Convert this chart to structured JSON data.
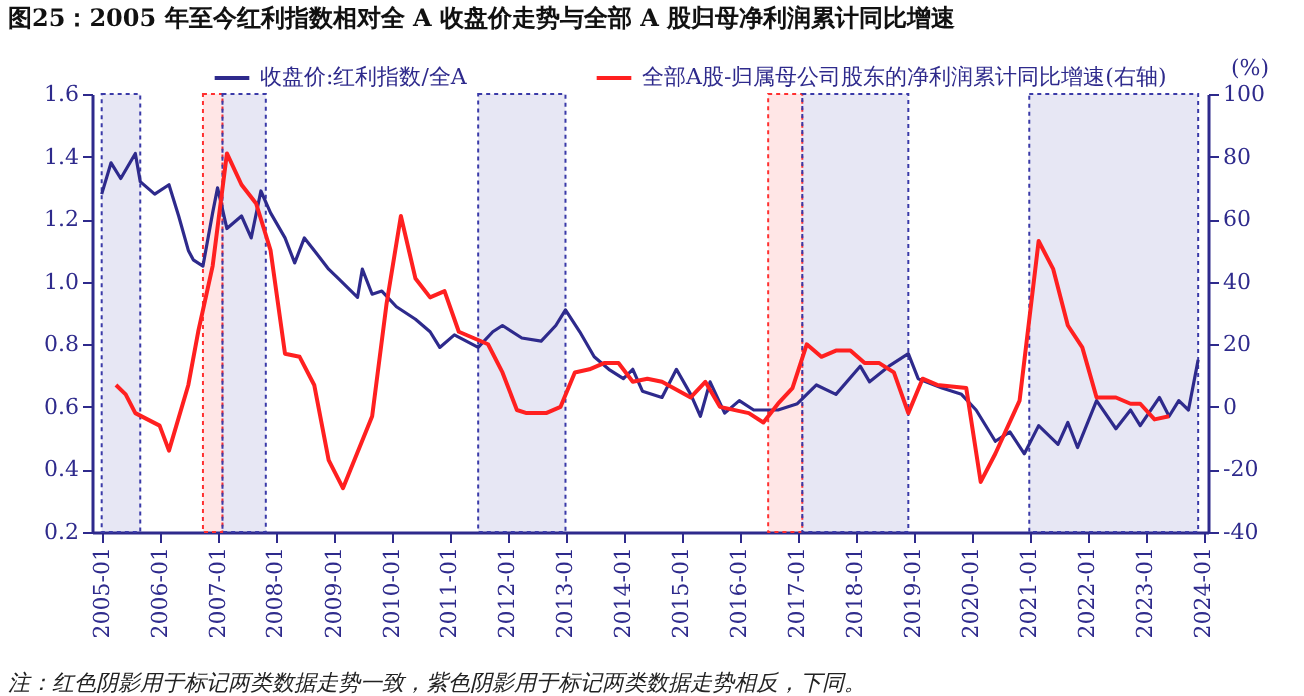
{
  "chart_data": {
    "type": "line",
    "title": "图25：2005 年至今红利指数相对全 A 收盘价走势与全部 A 股归母净利润累计同比增速",
    "annotations": [
      "注：红色阴影用于标记两类数据走势一致，紫色阴影用于标记两类数据走势相反，下同。"
    ],
    "y2label": "(%)",
    "xlim": [
      "2004-11",
      "2024-02"
    ],
    "xticks": [
      "2005-01",
      "2006-01",
      "2007-01",
      "2008-01",
      "2009-01",
      "2010-01",
      "2011-01",
      "2012-01",
      "2013-01",
      "2014-01",
      "2015-01",
      "2016-01",
      "2017-01",
      "2018-01",
      "2019-01",
      "2020-01",
      "2021-01",
      "2022-01",
      "2023-01",
      "2024-01"
    ],
    "ylim": [
      0.2,
      1.6
    ],
    "yticks": [
      0.2,
      0.4,
      0.6,
      0.8,
      {
        "value": 1,
        "label": "1.0"
      },
      1.2,
      1.4,
      1.6
    ],
    "y2lim": [
      -40,
      100
    ],
    "y2ticks": [
      {
        "value": -40,
        "label": "-40"
      },
      {
        "value": -20,
        "label": "-20"
      },
      0,
      20,
      40,
      60,
      80,
      100
    ],
    "grid": false,
    "legend": "top",
    "marker": "none",
    "line_style": "solid",
    "bands": [
      {
        "axis": "x",
        "from": "2005-01",
        "to": "2005-09",
        "color": "#3a3aa8"
      },
      {
        "axis": "x",
        "from": "2006-10",
        "to": "2007-02",
        "color": "#ff3030"
      },
      {
        "axis": "x",
        "from": "2007-02",
        "to": "2007-11",
        "color": "#3a3aa8"
      },
      {
        "axis": "x",
        "from": "2011-07",
        "to": "2013-01",
        "color": "#3a3aa8"
      },
      {
        "axis": "x",
        "from": "2016-07",
        "to": "2017-02",
        "color": "#ff3030"
      },
      {
        "axis": "x",
        "from": "2017-02",
        "to": "2018-12",
        "color": "#3a3aa8"
      },
      {
        "axis": "x",
        "from": "2021-01",
        "to": "2023-12",
        "color": "#3a3aa8"
      }
    ],
    "series": [
      {
        "name": "收盘价:红利指数/全A",
        "color": "#2e2a8c",
        "x": [
          "2005-01",
          "2005-03",
          "2005-05",
          "2005-08",
          "2005-09",
          "2005-12",
          "2006-03",
          "2006-05",
          "2006-07",
          "2006-08",
          "2006-10",
          "2006-12",
          "2007-01",
          "2007-03",
          "2007-06",
          "2007-08",
          "2007-10",
          "2007-12",
          "2008-03",
          "2008-05",
          "2008-07",
          "2008-09",
          "2008-12",
          "2009-02",
          "2009-06",
          "2009-07",
          "2009-09",
          "2009-11",
          "2010-02",
          "2010-06",
          "2010-09",
          "2010-11",
          "2011-02",
          "2011-07",
          "2011-10",
          "2011-12",
          "2012-04",
          "2012-08",
          "2012-11",
          "2013-01",
          "2013-04",
          "2013-07",
          "2013-10",
          "2014-01",
          "2014-03",
          "2014-05",
          "2014-09",
          "2014-12",
          "2015-03",
          "2015-05",
          "2015-07",
          "2015-10",
          "2016-01",
          "2016-04",
          "2016-06",
          "2016-09",
          "2017-01",
          "2017-05",
          "2017-09",
          "2018-02",
          "2018-04",
          "2018-08",
          "2018-12",
          "2019-02",
          "2019-07",
          "2019-11",
          "2020-02",
          "2020-06",
          "2020-09",
          "2020-12",
          "2021-03",
          "2021-07",
          "2021-09",
          "2021-11",
          "2022-03",
          "2022-07",
          "2022-10",
          "2022-12",
          "2023-04",
          "2023-06",
          "2023-08",
          "2023-10",
          "2023-12"
        ],
        "values": [
          1.28,
          1.38,
          1.33,
          1.41,
          1.32,
          1.28,
          1.31,
          1.21,
          1.1,
          1.07,
          1.05,
          1.22,
          1.3,
          1.17,
          1.21,
          1.14,
          1.29,
          1.22,
          1.14,
          1.06,
          1.14,
          1.1,
          1.04,
          1.01,
          0.95,
          1.04,
          0.96,
          0.97,
          0.92,
          0.88,
          0.84,
          0.79,
          0.83,
          0.79,
          0.84,
          0.86,
          0.82,
          0.81,
          0.86,
          0.91,
          0.84,
          0.76,
          0.72,
          0.69,
          0.72,
          0.65,
          0.63,
          0.72,
          0.64,
          0.57,
          0.68,
          0.58,
          0.62,
          0.59,
          0.59,
          0.59,
          0.61,
          0.67,
          0.64,
          0.73,
          0.68,
          0.73,
          0.77,
          0.69,
          0.66,
          0.64,
          0.59,
          0.49,
          0.52,
          0.45,
          0.54,
          0.48,
          0.55,
          0.47,
          0.62,
          0.53,
          0.59,
          0.54,
          0.63,
          0.57,
          0.62,
          0.59,
          0.75
        ]
      },
      {
        "name": "全部A股-归属母公司股东的净利润累计同比增速(右轴)",
        "color": "#ff2020",
        "axis": "y2",
        "x": [
          "2005-04",
          "2005-06",
          "2005-08",
          "2006-01",
          "2006-03",
          "2006-07",
          "2006-09",
          "2006-12",
          "2007-03",
          "2007-06",
          "2007-09",
          "2007-12",
          "2008-03",
          "2008-06",
          "2008-09",
          "2008-12",
          "2009-03",
          "2009-09",
          "2009-12",
          "2010-03",
          "2010-06",
          "2010-09",
          "2010-12",
          "2011-03",
          "2011-06",
          "2011-09",
          "2011-12",
          "2012-03",
          "2012-05",
          "2012-09",
          "2012-12",
          "2013-03",
          "2013-06",
          "2013-09",
          "2013-12",
          "2014-03",
          "2014-06",
          "2014-09",
          "2015-03",
          "2015-06",
          "2015-09",
          "2016-03",
          "2016-06",
          "2016-09",
          "2016-12",
          "2017-03",
          "2017-06",
          "2017-09",
          "2017-12",
          "2018-03",
          "2018-06",
          "2018-09",
          "2018-12",
          "2019-03",
          "2019-06",
          "2019-12",
          "2020-03",
          "2020-06",
          "2020-11",
          "2021-03",
          "2021-06",
          "2021-09",
          "2021-12",
          "2022-03",
          "2022-07",
          "2022-10",
          "2022-12",
          "2023-03",
          "2023-06"
        ],
        "values": [
          7,
          4,
          -2,
          -6,
          -14,
          7,
          24,
          45,
          81,
          71,
          65,
          50,
          17,
          16,
          7,
          -17,
          -26,
          -3,
          33,
          61,
          41,
          35,
          37,
          24,
          22,
          20,
          11,
          -1,
          -2,
          -2,
          0,
          11,
          12,
          14,
          14,
          8,
          9,
          8,
          3,
          8,
          0,
          -2,
          -5,
          1,
          6,
          20,
          16,
          18,
          18,
          14,
          14,
          11,
          -2,
          9,
          7,
          6,
          -24,
          -15,
          2,
          53,
          44,
          26,
          19,
          3,
          3,
          1,
          1,
          -4,
          -3
        ]
      }
    ]
  }
}
